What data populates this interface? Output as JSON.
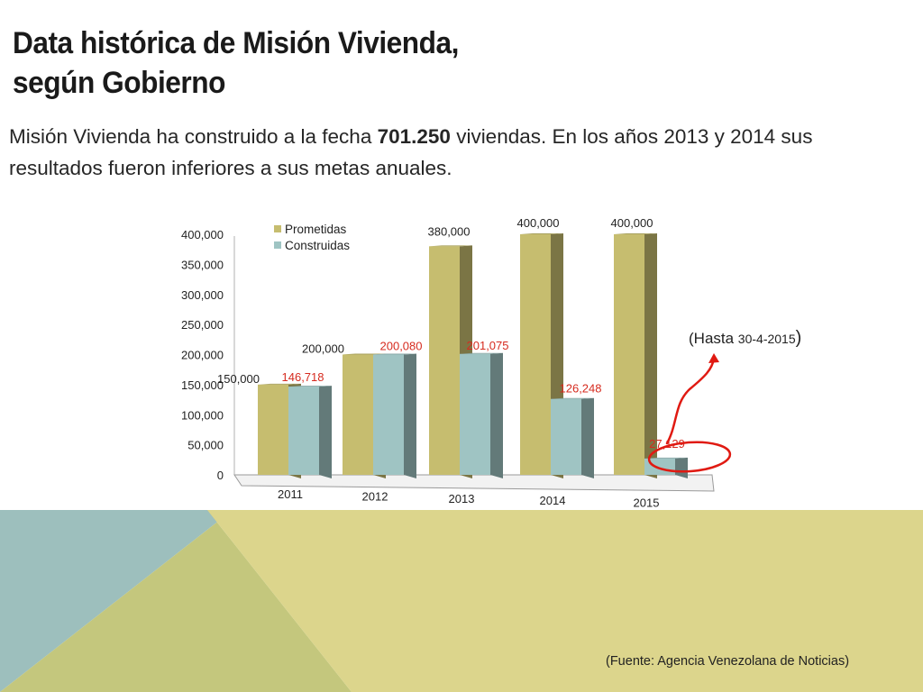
{
  "slide": {
    "title_line1": "Data histórica de Misión Vivienda,",
    "title_line2": "según Gobierno",
    "subtitle_pre": "Misión Vivienda  ha construido a la fecha ",
    "subtitle_bold": "701.250",
    "subtitle_post": " viviendas. En los años 2013 y 2014 sus resultados fueron inferiores a sus metas anuales.",
    "source": "(Fuente:  Agencia Venezolana de Noticias)"
  },
  "colors": {
    "prometidas": "#c6bd6f",
    "construidas": "#9fc4c3",
    "highlight": "#e01a12",
    "band_teal": "#9dbfbd",
    "band_green": "#c4c77d",
    "band_yellow": "#dcd58c"
  },
  "chart_data": {
    "type": "bar",
    "categories": [
      "2011",
      "2012",
      "2013",
      "2014",
      "2015"
    ],
    "series": [
      {
        "name": "Prometidas",
        "values": [
          150000,
          200000,
          380000,
          400000,
          400000
        ],
        "labels": [
          "150,000",
          "200,000",
          "380,000",
          "400,000",
          "400,000"
        ]
      },
      {
        "name": "Construidas",
        "values": [
          146718,
          200080,
          201075,
          126248,
          27129
        ],
        "labels": [
          "146,718",
          "200,080",
          "201,075",
          "126,248",
          "27,129"
        ]
      }
    ],
    "ylim": [
      0,
      400000
    ],
    "yticks": [
      0,
      50000,
      100000,
      150000,
      200000,
      250000,
      300000,
      350000,
      400000
    ],
    "ytick_labels": [
      "0",
      "50,000",
      "100,000",
      "150,000",
      "200,000",
      "250,000",
      "300,000",
      "350,000",
      "400,000"
    ],
    "legend_position": "top-left",
    "annotation": {
      "prefix": "(Hasta ",
      "date": "30-4-2015",
      "suffix": ")"
    }
  }
}
